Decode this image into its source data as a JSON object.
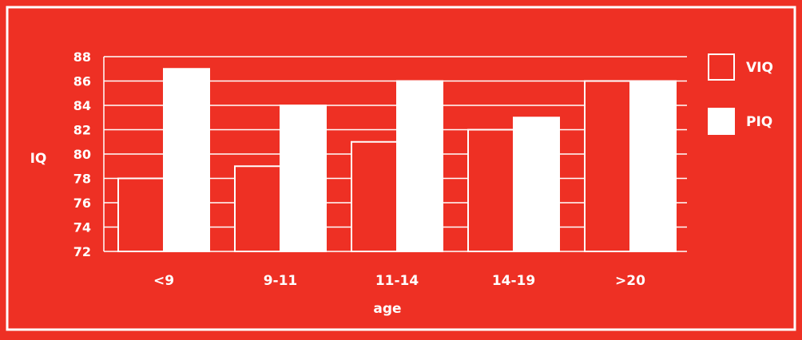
{
  "chart_data": {
    "type": "bar",
    "categories": [
      "<9",
      "9-11",
      "11-14",
      "14-19",
      ">20"
    ],
    "series": [
      {
        "name": "VIQ",
        "values": [
          78,
          79,
          81,
          82,
          86
        ]
      },
      {
        "name": "PIQ",
        "values": [
          87,
          84,
          86,
          83,
          86
        ]
      }
    ],
    "xlabel": "age",
    "ylabel": "IQ",
    "ylim": [
      72,
      88
    ],
    "yticks": [
      72,
      74,
      76,
      78,
      80,
      82,
      84,
      86,
      88
    ],
    "grid": true,
    "legend_position": "top-right",
    "colors": {
      "background": "#ee3024",
      "VIQ_fill": "#ee3024",
      "PIQ_fill": "#ffffff",
      "line": "#ffffff"
    }
  }
}
